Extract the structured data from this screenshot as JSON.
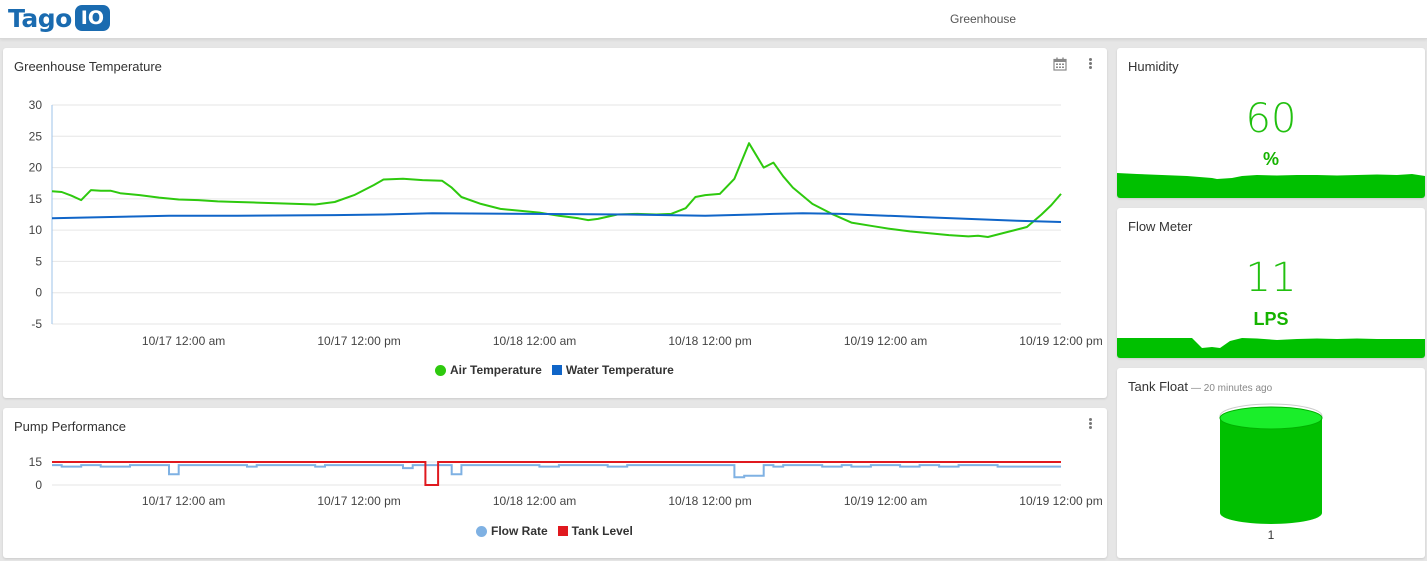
{
  "header": {
    "logo_text": "Tago",
    "logo_badge": "IO",
    "dashboard_title": "Greenhouse"
  },
  "temperature_card": {
    "title": "Greenhouse Temperature",
    "icons": [
      "calendar-icon",
      "more-vertical-icon"
    ],
    "legend": [
      {
        "name": "Air Temperature",
        "color": "#2ec90e"
      },
      {
        "name": "Water Temperature",
        "color": "#1065c8"
      }
    ]
  },
  "pump_card": {
    "title": "Pump Performance",
    "icons": [
      "more-vertical-icon"
    ],
    "legend": [
      {
        "name": "Flow Rate",
        "color": "#7fb1e3"
      },
      {
        "name": "Tank Level",
        "color": "#e0191f"
      }
    ]
  },
  "humidity_card": {
    "title": "Humidity",
    "value": "60",
    "unit": "%"
  },
  "flow_card": {
    "title": "Flow Meter",
    "value": "11",
    "unit": "LPS"
  },
  "tank_card": {
    "title": "Tank Float",
    "subtitle": "— 20 minutes ago",
    "value": "1"
  },
  "chart_data": [
    {
      "type": "line",
      "title": "Greenhouse Temperature",
      "x_ticks": [
        "10/17 12:00 am",
        "10/17 12:00 pm",
        "10/18 12:00 am",
        "10/18 12:00 pm",
        "10/19 12:00 am",
        "10/19 12:00 pm"
      ],
      "x_range_hours": [
        -9,
        60
      ],
      "y_ticks": [
        30,
        25,
        20,
        15,
        10,
        5,
        0,
        -5
      ],
      "ylim": [
        -5,
        30
      ],
      "grid": true,
      "legend_position": "bottom",
      "series": [
        {
          "name": "Air Temperature",
          "color": "#2ec90e",
          "points": [
            [
              -9,
              16.2
            ],
            [
              -8,
              16.1
            ],
            [
              -7,
              15.5
            ],
            [
              -6,
              14.8
            ],
            [
              -5,
              16.4
            ],
            [
              -4,
              16.3
            ],
            [
              -3,
              16.3
            ],
            [
              -2,
              15.9
            ],
            [
              0,
              15.6
            ],
            [
              2,
              15.2
            ],
            [
              4,
              14.9
            ],
            [
              6,
              14.8
            ],
            [
              8,
              14.6
            ],
            [
              10,
              14.5
            ],
            [
              12,
              14.4
            ],
            [
              14,
              14.3
            ],
            [
              16,
              14.2
            ],
            [
              18,
              14.1
            ],
            [
              20,
              14.5
            ],
            [
              22,
              15.6
            ],
            [
              24,
              17.2
            ],
            [
              25,
              18.1
            ],
            [
              27,
              18.2
            ],
            [
              29,
              18.0
            ],
            [
              31,
              17.9
            ],
            [
              32,
              16.8
            ],
            [
              33,
              15.3
            ],
            [
              35,
              14.2
            ],
            [
              37,
              13.4
            ],
            [
              39,
              13.1
            ],
            [
              41,
              12.8
            ],
            [
              43,
              12.3
            ],
            [
              45,
              11.9
            ],
            [
              46,
              11.6
            ],
            [
              47,
              11.8
            ],
            [
              49,
              12.5
            ],
            [
              51,
              12.6
            ],
            [
              53,
              12.5
            ],
            [
              54.5,
              12.6
            ],
            [
              56,
              13.5
            ],
            [
              57,
              15.3
            ],
            [
              58,
              15.6
            ],
            [
              59.5,
              15.8
            ],
            [
              61,
              18.2
            ],
            [
              62.5,
              23.9
            ],
            [
              64,
              20.0
            ],
            [
              65,
              20.8
            ],
            [
              66,
              18.6
            ],
            [
              67,
              16.8
            ],
            [
              69,
              14.2
            ],
            [
              71,
              12.6
            ],
            [
              73,
              11.2
            ],
            [
              75,
              10.7
            ],
            [
              77,
              10.2
            ],
            [
              79,
              9.8
            ],
            [
              81,
              9.5
            ],
            [
              83,
              9.2
            ],
            [
              85,
              9.0
            ],
            [
              86,
              9.1
            ],
            [
              87,
              8.9
            ],
            [
              89,
              9.7
            ],
            [
              91,
              10.5
            ],
            [
              92.5,
              12.5
            ],
            [
              93.5,
              14.0
            ],
            [
              94.5,
              15.8
            ]
          ]
        },
        {
          "name": "Water Temperature",
          "color": "#1065c8",
          "points": [
            [
              -9,
              11.9
            ],
            [
              -6,
              12.0
            ],
            [
              -3,
              12.1
            ],
            [
              0,
              12.2
            ],
            [
              3,
              12.3
            ],
            [
              10,
              12.3
            ],
            [
              20,
              12.4
            ],
            [
              25,
              12.5
            ],
            [
              30,
              12.7
            ],
            [
              40,
              12.6
            ],
            [
              50,
              12.5
            ],
            [
              58,
              12.3
            ],
            [
              65,
              12.6
            ],
            [
              68,
              12.7
            ],
            [
              72,
              12.6
            ],
            [
              75,
              12.4
            ],
            [
              80,
              12.1
            ],
            [
              85,
              11.8
            ],
            [
              90,
              11.5
            ],
            [
              94.5,
              11.3
            ]
          ]
        }
      ]
    },
    {
      "type": "line",
      "title": "Pump Performance",
      "x_ticks": [
        "10/17 12:00 am",
        "10/17 12:00 pm",
        "10/18 12:00 am",
        "10/18 12:00 pm",
        "10/19 12:00 am",
        "10/19 12:00 pm"
      ],
      "y_ticks": [
        15,
        0
      ],
      "ylim": [
        0,
        16
      ],
      "grid": true,
      "legend_position": "bottom",
      "series": [
        {
          "name": "Flow Rate",
          "color": "#7fb1e3",
          "step": true,
          "points": [
            [
              -9,
              13
            ],
            [
              -8,
              12
            ],
            [
              -6,
              13
            ],
            [
              -4,
              12
            ],
            [
              -1,
              13
            ],
            [
              0,
              13
            ],
            [
              1,
              13
            ],
            [
              2,
              13
            ],
            [
              3,
              7
            ],
            [
              4,
              13
            ],
            [
              10,
              13
            ],
            [
              11,
              12
            ],
            [
              12,
              13
            ],
            [
              18,
              12
            ],
            [
              19,
              13
            ],
            [
              25,
              13
            ],
            [
              27,
              11
            ],
            [
              28,
              13
            ],
            [
              30,
              13
            ],
            [
              31,
              13
            ],
            [
              32,
              7
            ],
            [
              33,
              13
            ],
            [
              38,
              13
            ],
            [
              41,
              12
            ],
            [
              43,
              13
            ],
            [
              47,
              13
            ],
            [
              48,
              12
            ],
            [
              50,
              13
            ],
            [
              56,
              13
            ],
            [
              58,
              13
            ],
            [
              60,
              13
            ],
            [
              61,
              5
            ],
            [
              62,
              6
            ],
            [
              64,
              13
            ],
            [
              65,
              12
            ],
            [
              66,
              13
            ],
            [
              68,
              13
            ],
            [
              70,
              12
            ],
            [
              72,
              13
            ],
            [
              73,
              12
            ],
            [
              75,
              13
            ],
            [
              78,
              12
            ],
            [
              80,
              13
            ],
            [
              82,
              12
            ],
            [
              84,
              13
            ],
            [
              88,
              12
            ],
            [
              90,
              12
            ],
            [
              94.5,
              12
            ]
          ]
        },
        {
          "name": "Tank Level",
          "color": "#e0191f",
          "step": true,
          "points": [
            [
              -9,
              15
            ],
            [
              29,
              15
            ],
            [
              29.3,
              0
            ],
            [
              30.3,
              0
            ],
            [
              30.6,
              15
            ],
            [
              94.5,
              15
            ]
          ]
        }
      ]
    }
  ]
}
